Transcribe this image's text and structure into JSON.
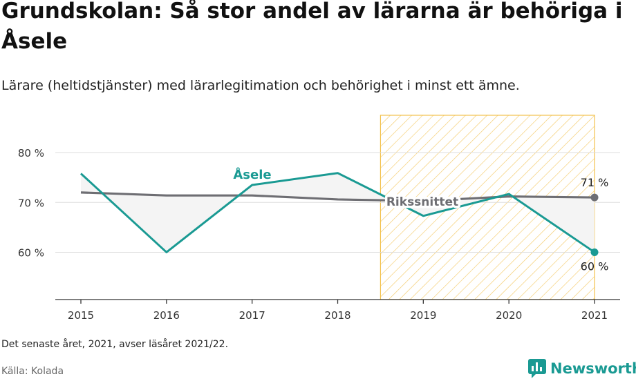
{
  "title": "Grundskolan: Så stor andel av lärarna är behöriga i Åsele",
  "subtitle": "Lärare (heltidstjänster) med lärarlegitimation och behörighet i minst ett ämne.",
  "footnote": "Det senaste året, 2021, avser läsåret 2021/22.",
  "source": "Källa: Kolada",
  "brand": {
    "name": "Newsworthy",
    "logo_icon": "newsworthy-logo-icon"
  },
  "chart_data": {
    "type": "line",
    "categories": [
      "2015",
      "2016",
      "2017",
      "2018",
      "2019",
      "2020",
      "2021"
    ],
    "ylim": [
      50.5,
      87.5
    ],
    "yticks": [
      60,
      70,
      80
    ],
    "ytick_labels": [
      "60 %",
      "70 %",
      "80 %"
    ],
    "grid": true,
    "highlight_range": [
      "2018.5",
      "2021"
    ],
    "series": [
      {
        "name": "Åsele",
        "color": "#1a9a93",
        "values": [
          75.8,
          60.0,
          73.5,
          75.9,
          67.3,
          71.7,
          60.0
        ],
        "end_label": "60 %"
      },
      {
        "name": "Rikssnittet",
        "color": "#6e6e73",
        "values": [
          72.0,
          71.4,
          71.4,
          70.6,
          70.3,
          71.2,
          71.0
        ],
        "end_label": "71 %"
      }
    ],
    "colors": {
      "highlight_stroke": "#f2c14e",
      "gap_fill": "#f4f4f4",
      "grid": "#dddddd"
    }
  }
}
